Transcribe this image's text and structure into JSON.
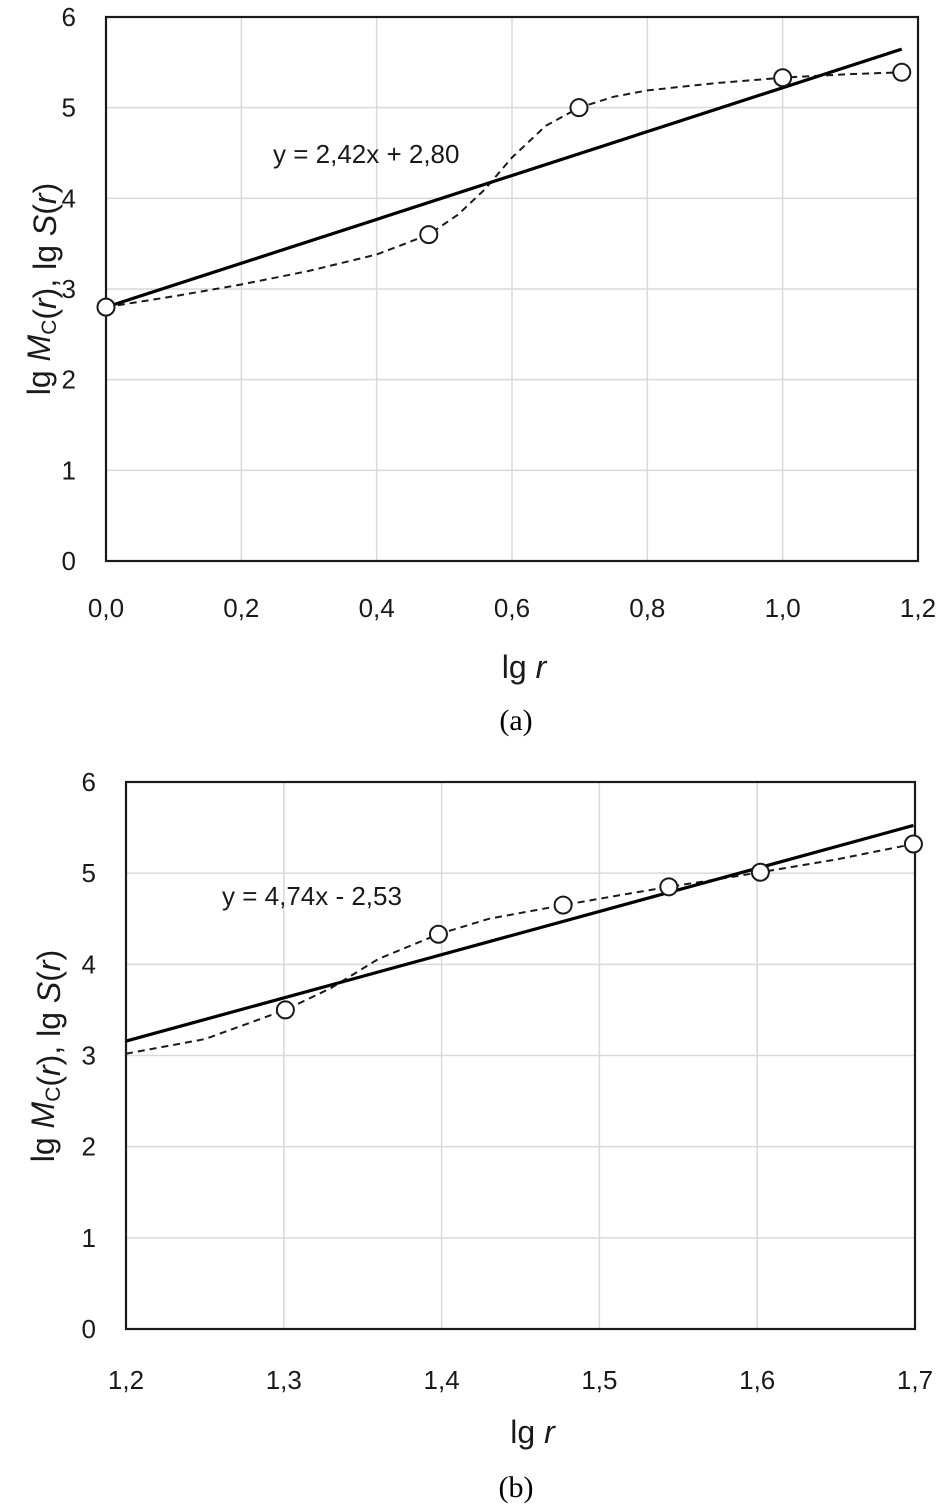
{
  "chart_data": [
    {
      "type": "scatter",
      "panel_label": "(a)",
      "xlabel": "lg r",
      "ylabel": "lg M_C(r),  lg S(r)",
      "xlim": [
        0,
        1.2
      ],
      "ylim": [
        0,
        6
      ],
      "xticks": [
        "0,0",
        "0,2",
        "0,4",
        "0,6",
        "0,8",
        "1,0",
        "1,2"
      ],
      "yticks": [
        "0",
        "1",
        "2",
        "3",
        "4",
        "5",
        "6"
      ],
      "grid": true,
      "points": {
        "x": [
          0.0,
          0.477,
          0.699,
          1.0,
          1.176
        ],
        "y": [
          2.8,
          3.6,
          5.0,
          5.33,
          5.39
        ]
      },
      "trendline": {
        "slope": 2.42,
        "intercept": 2.8,
        "x_range": [
          0.0,
          1.176
        ],
        "label": "y = 2,42x + 2,80"
      },
      "smooth_curve": {
        "x": [
          0.0,
          0.1,
          0.2,
          0.3,
          0.4,
          0.477,
          0.52,
          0.56,
          0.6,
          0.65,
          0.699,
          0.75,
          0.8,
          0.9,
          1.0,
          1.1,
          1.176
        ],
        "y": [
          2.8,
          2.92,
          3.05,
          3.2,
          3.38,
          3.6,
          3.82,
          4.1,
          4.45,
          4.8,
          5.0,
          5.12,
          5.19,
          5.27,
          5.33,
          5.37,
          5.39
        ]
      }
    },
    {
      "type": "scatter",
      "panel_label": "(b)",
      "xlabel": "lg r",
      "ylabel": "lg M_C(r),  lg S(r)",
      "xlim": [
        1.2,
        1.7
      ],
      "ylim": [
        0,
        6
      ],
      "xticks": [
        "1,2",
        "1,3",
        "1,4",
        "1,5",
        "1,6",
        "1,7"
      ],
      "yticks": [
        "0",
        "1",
        "2",
        "3",
        "4",
        "5",
        "6"
      ],
      "grid": true,
      "points": {
        "x": [
          1.301,
          1.398,
          1.477,
          1.544,
          1.602,
          1.699
        ],
        "y": [
          3.5,
          4.33,
          4.65,
          4.85,
          5.01,
          5.32
        ]
      },
      "trendline": {
        "slope": 4.74,
        "intercept": -2.53,
        "x_range": [
          1.2,
          1.699
        ],
        "label": "y = 4,74x - 2,53"
      },
      "smooth_curve": {
        "x": [
          1.2,
          1.25,
          1.301,
          1.33,
          1.36,
          1.398,
          1.43,
          1.477,
          1.51,
          1.544,
          1.57,
          1.602,
          1.65,
          1.699
        ],
        "y": [
          3.02,
          3.18,
          3.5,
          3.74,
          4.06,
          4.33,
          4.5,
          4.65,
          4.75,
          4.85,
          4.92,
          5.01,
          5.15,
          5.32
        ]
      }
    }
  ]
}
